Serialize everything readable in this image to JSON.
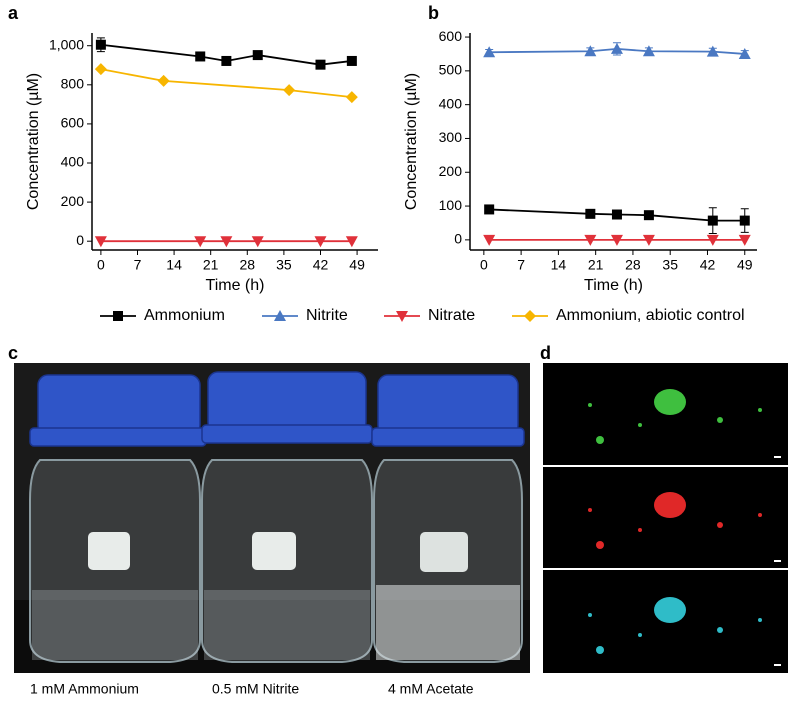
{
  "chart_data": [
    {
      "type": "line",
      "label": "a",
      "x_label": "Time (h)",
      "y_label": "Concentration (µM)",
      "xlim": [
        -1.7,
        53
      ],
      "xticks": [
        0,
        7,
        14,
        21,
        28,
        35,
        42,
        49
      ],
      "ylim": [
        -45,
        1065
      ],
      "yticks": [
        0,
        200,
        400,
        600,
        800,
        {
          "value": 1000,
          "label": "1,000"
        }
      ],
      "series": [
        {
          "name": "Ammonium",
          "color": "#000000",
          "marker": "square",
          "x": [
            0,
            19,
            24,
            30,
            42,
            48
          ],
          "values": [
            1005,
            945,
            922,
            952,
            903,
            922
          ],
          "errors": [
            35,
            10,
            12,
            10,
            10,
            10
          ]
        },
        {
          "name": "Nitrate",
          "color": "#e0313a",
          "marker": "triangle-down",
          "x": [
            0,
            19,
            24,
            30,
            42,
            48
          ],
          "values": [
            0,
            0,
            0,
            0,
            0,
            0
          ]
        },
        {
          "name": "Ammonium, abiotic control",
          "color": "#f7b500",
          "marker": "diamond",
          "x": [
            0,
            12,
            36,
            48
          ],
          "values": [
            880,
            820,
            773,
            737
          ]
        }
      ]
    },
    {
      "type": "line",
      "label": "b",
      "x_label": "Time (h)",
      "y_label": "Concentration (µM)",
      "xlim": [
        -2.6,
        51.3
      ],
      "xticks": [
        0,
        7,
        14,
        21,
        28,
        35,
        42,
        49
      ],
      "ylim": [
        -30,
        612
      ],
      "yticks": [
        0,
        100,
        200,
        300,
        400,
        500,
        600
      ],
      "series": [
        {
          "name": "Nitrite",
          "color": "#4a78c2",
          "marker": "triangle-up",
          "x": [
            1,
            20,
            25,
            31,
            43,
            49
          ],
          "values": [
            555,
            558,
            565,
            558,
            557,
            550
          ],
          "errors": [
            8,
            10,
            18,
            10,
            10,
            10
          ]
        },
        {
          "name": "Ammonium",
          "color": "#000000",
          "marker": "square",
          "x": [
            1,
            20,
            25,
            31,
            43,
            49
          ],
          "values": [
            90,
            77,
            75,
            73,
            57,
            57
          ],
          "errors": [
            5,
            8,
            12,
            12,
            38,
            35
          ]
        },
        {
          "name": "Nitrate",
          "color": "#e0313a",
          "marker": "triangle-down",
          "x": [
            1,
            20,
            25,
            31,
            43,
            49
          ],
          "values": [
            0,
            0,
            0,
            0,
            0,
            0
          ]
        }
      ]
    }
  ],
  "photo": {
    "label": "c",
    "captions": [
      "1 mM Ammonium",
      "0.5 mM Nitrite",
      "4 mM Acetate"
    ]
  },
  "micrographs": {
    "label": "d"
  }
}
